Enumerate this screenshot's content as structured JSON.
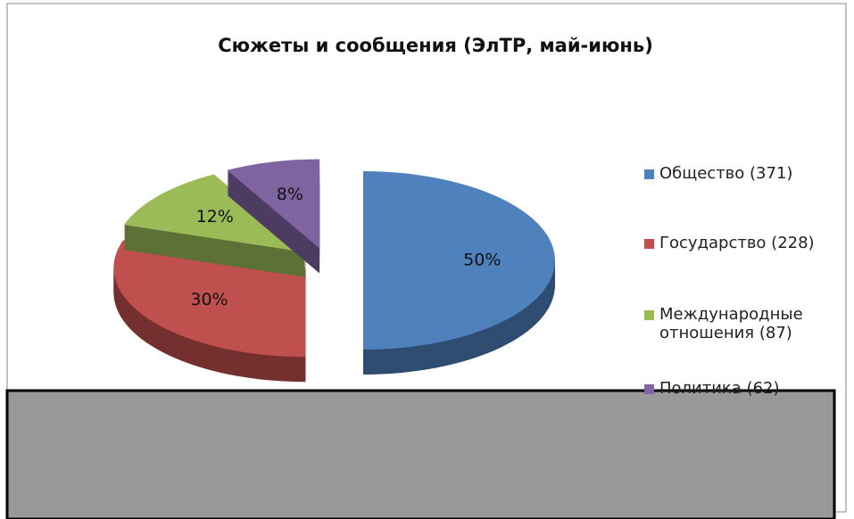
{
  "chart_data": {
    "type": "pie",
    "title": "Сюжеты и сообщения (ЭлТР, май-июнь)",
    "categories": [
      "Общество (371)",
      "Государство (228)",
      "Международные отношения (87)",
      "Политика (62)"
    ],
    "values": [
      50,
      30,
      12,
      8
    ],
    "value_labels": [
      "50%",
      "30%",
      "12%",
      "8%"
    ],
    "colors": [
      "#4f81bd",
      "#c0504d",
      "#9bbb59",
      "#8064a2"
    ],
    "legend": "right"
  }
}
